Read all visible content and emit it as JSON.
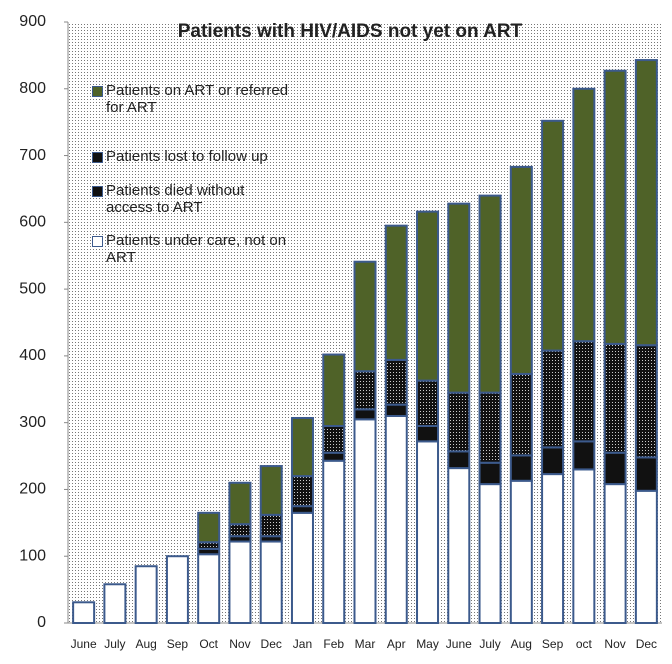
{
  "chart_data": {
    "type": "stacked_bar",
    "title": "Patients with HIV/AIDS not yet on ART",
    "categories": [
      "June",
      "July",
      "Aug",
      "Sep",
      "Oct",
      "Nov",
      "Dec",
      "Jan",
      "Feb",
      "Mar",
      "Apr",
      "May",
      "June",
      "July",
      "Aug",
      "Sep",
      "oct",
      "Nov",
      "Dec"
    ],
    "series": [
      {
        "name": "Patients under care, not on ART",
        "color": "#ffffff",
        "values": [
          31,
          58,
          85,
          100,
          103,
          122,
          122,
          165,
          243,
          305,
          310,
          272,
          232,
          208,
          213,
          223,
          230,
          208,
          198
        ]
      },
      {
        "name": "Patients died without access to ART",
        "color": "#111111",
        "values": [
          0,
          0,
          0,
          0,
          8,
          8,
          8,
          10,
          12,
          15,
          17,
          23,
          25,
          32,
          38,
          40,
          42,
          47,
          50
        ]
      },
      {
        "name": "Patients lost to follow up",
        "color": "#1a1a1a",
        "values": [
          0,
          0,
          0,
          0,
          10,
          18,
          32,
          45,
          40,
          57,
          67,
          68,
          88,
          105,
          122,
          145,
          150,
          163,
          168
        ]
      },
      {
        "name": "Patients on ART or referred for ART",
        "color": "#4f6228",
        "values": [
          0,
          0,
          0,
          0,
          44,
          62,
          73,
          87,
          107,
          164,
          201,
          253,
          283,
          295,
          310,
          344,
          378,
          409,
          427
        ]
      }
    ],
    "ylim": [
      0,
      900
    ],
    "yticks": [
      0,
      100,
      200,
      300,
      400,
      500,
      600,
      700,
      800,
      900
    ],
    "grid": false
  }
}
